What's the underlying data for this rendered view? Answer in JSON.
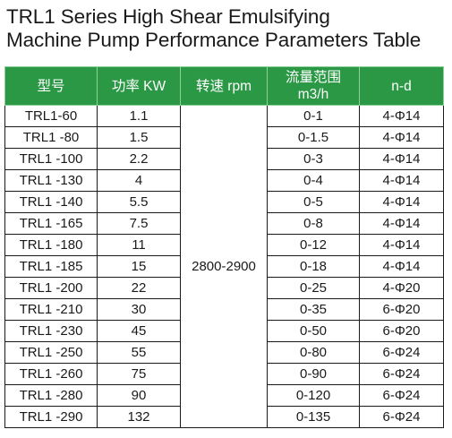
{
  "title": {
    "line1": "TRL1 Series High Shear Emulsifying",
    "line2": "Machine Pump Performance Parameters Table"
  },
  "table": {
    "headers": [
      "型号",
      "功率 KW",
      "转速 rpm",
      "流量范围\nm3/h",
      "n-d"
    ],
    "header_color": "#2a9845",
    "shared_speed": "2800-2900",
    "rows": [
      {
        "model": "TRL1-60",
        "power": "1.1",
        "flow": "0-1",
        "nd": "4-Φ14"
      },
      {
        "model": "TRL1 -80",
        "power": "1.5",
        "flow": "0-1.5",
        "nd": "4-Φ14"
      },
      {
        "model": "TRL1 -100",
        "power": "2.2",
        "flow": "0-3",
        "nd": "4-Φ14"
      },
      {
        "model": "TRL1 -130",
        "power": "4",
        "flow": "0-4",
        "nd": "4-Φ14"
      },
      {
        "model": "TRL1 -140",
        "power": "5.5",
        "flow": "0-5",
        "nd": "4-Φ14"
      },
      {
        "model": "TRL1 -165",
        "power": "7.5",
        "flow": "0-8",
        "nd": "4-Φ14"
      },
      {
        "model": "TRL1 -180",
        "power": "11",
        "flow": "0-12",
        "nd": "4-Φ14"
      },
      {
        "model": "TRL1 -185",
        "power": "15",
        "flow": "0-18",
        "nd": "4-Φ14"
      },
      {
        "model": "TRL1 -200",
        "power": "22",
        "flow": "0-25",
        "nd": "4-Φ20"
      },
      {
        "model": "TRL1 -210",
        "power": "30",
        "flow": "0-35",
        "nd": "6-Φ20"
      },
      {
        "model": "TRL1 -230",
        "power": "45",
        "flow": "0-50",
        "nd": "6-Φ20"
      },
      {
        "model": "TRL1 -250",
        "power": "55",
        "flow": "0-80",
        "nd": "6-Φ24"
      },
      {
        "model": "TRL1 -260",
        "power": "75",
        "flow": "0-90",
        "nd": "6-Φ24"
      },
      {
        "model": "TRL1 -280",
        "power": "90",
        "flow": "0-120",
        "nd": "6-Φ24"
      },
      {
        "model": "TRL1 -290",
        "power": "132",
        "flow": "0-135",
        "nd": "6-Φ24"
      }
    ]
  }
}
